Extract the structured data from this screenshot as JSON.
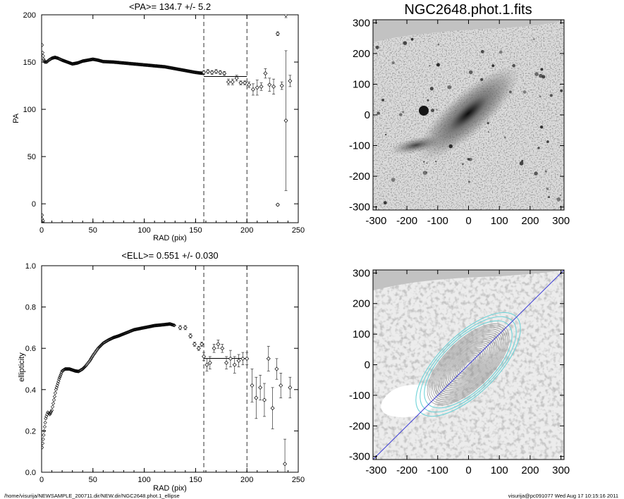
{
  "footer": {
    "path": "/home/visurija/NEWSAMPLE_200711.dir/NEW.dir/NGC2648.phot.1_ellipse",
    "stamp": "visurija@pc091077  Wed Aug 17 10:15:16 2011"
  },
  "chart_data": [
    {
      "type": "scatter",
      "title": "<PA>= 134.7 +/-   5.2",
      "xlabel": "RAD (pix)",
      "ylabel": "PA",
      "xlim": [
        0,
        250
      ],
      "ylim": [
        -20,
        200
      ],
      "xticks": [
        "0",
        "50",
        "100",
        "150",
        "200",
        "250"
      ],
      "yticks": [
        "0",
        "50",
        "100",
        "150",
        "200"
      ],
      "vlines": [
        158,
        200
      ],
      "mean_line": {
        "x": [
          158,
          200
        ],
        "y": 134.7
      },
      "series": [
        {
          "smooth": [
            [
              0.5,
              168
            ],
            [
              1,
              160
            ],
            [
              2,
              153
            ],
            [
              3,
              150
            ],
            [
              5,
              150
            ],
            [
              7,
              152
            ],
            [
              10,
              154
            ],
            [
              13,
              155
            ],
            [
              16,
              154
            ],
            [
              20,
              152
            ],
            [
              25,
              150
            ],
            [
              30,
              148
            ],
            [
              35,
              149
            ],
            [
              40,
              151
            ],
            [
              45,
              152
            ],
            [
              50,
              153
            ],
            [
              55,
              152
            ],
            [
              60,
              150.5
            ],
            [
              70,
              150
            ],
            [
              80,
              149
            ],
            [
              90,
              148
            ],
            [
              100,
              147
            ],
            [
              110,
              146
            ],
            [
              120,
              145
            ],
            [
              130,
              143
            ],
            [
              140,
              141
            ],
            [
              150,
              139
            ],
            [
              158,
              138
            ]
          ],
          "points": [
            {
              "x": 158,
              "y": 139,
              "e": 2
            },
            {
              "x": 162,
              "y": 140,
              "e": 2
            },
            {
              "x": 166,
              "y": 139,
              "e": 2
            },
            {
              "x": 170,
              "y": 140,
              "e": 2
            },
            {
              "x": 174,
              "y": 139,
              "e": 2
            },
            {
              "x": 178,
              "y": 138,
              "e": 2
            },
            {
              "x": 182,
              "y": 129,
              "e": 3
            },
            {
              "x": 186,
              "y": 129,
              "e": 3
            },
            {
              "x": 190,
              "y": 133,
              "e": 3
            },
            {
              "x": 194,
              "y": 128,
              "e": 2
            },
            {
              "x": 198,
              "y": 128,
              "e": 2
            },
            {
              "x": 202,
              "y": 126,
              "e": 3
            },
            {
              "x": 206,
              "y": 121,
              "e": 6
            },
            {
              "x": 210,
              "y": 123,
              "e": 8
            },
            {
              "x": 214,
              "y": 124,
              "e": 4
            },
            {
              "x": 218,
              "y": 138,
              "e": 5
            },
            {
              "x": 222,
              "y": 126,
              "e": 7
            },
            {
              "x": 226,
              "y": 124,
              "e": 8
            },
            {
              "x": 230,
              "y": 180,
              "e": 2
            },
            {
              "x": 230,
              "y": -1,
              "e": 1
            },
            {
              "x": 234,
              "y": 125,
              "e": 4
            },
            {
              "x": 238,
              "y": 88,
              "e": 74
            },
            {
              "x": 242,
              "y": 130,
              "e": 6
            },
            {
              "x": 238,
              "y": 200,
              "e": 3
            }
          ],
          "outliers": [
            [
              0.5,
              -12
            ],
            [
              0.5,
              -16
            ],
            [
              1.5,
              -18
            ],
            [
              1.5,
              -20
            ]
          ]
        }
      ]
    },
    {
      "type": "image",
      "title": "NGC2648.phot.1.fits",
      "xlim": [
        -310,
        310
      ],
      "ylim": [
        -310,
        310
      ],
      "xticks": [
        "-300",
        "-200",
        "-100",
        "0",
        "100",
        "200",
        "300"
      ],
      "yticks": [
        "-300",
        "-200",
        "-100",
        "0",
        "100",
        "200",
        "300"
      ]
    },
    {
      "type": "scatter",
      "title": "<ELL>= 0.551 +/-  0.030",
      "xlabel": "RAD (pix)",
      "ylabel": "ellipticity",
      "xlim": [
        0,
        250
      ],
      "ylim": [
        0,
        1
      ],
      "xticks": [
        "0",
        "50",
        "100",
        "150",
        "200",
        "250"
      ],
      "yticks": [
        "0.0",
        "0.2",
        "0.4",
        "0.6",
        "0.8",
        "1.0"
      ],
      "vlines": [
        158,
        200
      ],
      "mean_line": {
        "x": [
          158,
          200
        ],
        "y": 0.551
      },
      "series": [
        {
          "smooth": [
            [
              0.5,
              0.12
            ],
            [
              1,
              0.14
            ],
            [
              2,
              0.18
            ],
            [
              3,
              0.22
            ],
            [
              4,
              0.26
            ],
            [
              6,
              0.29
            ],
            [
              8,
              0.28
            ],
            [
              10,
              0.3
            ],
            [
              12,
              0.35
            ],
            [
              14,
              0.4
            ],
            [
              17,
              0.45
            ],
            [
              20,
              0.49
            ],
            [
              23,
              0.5
            ],
            [
              27,
              0.5
            ],
            [
              30,
              0.495
            ],
            [
              33,
              0.49
            ],
            [
              36,
              0.488
            ],
            [
              40,
              0.5
            ],
            [
              43,
              0.515
            ],
            [
              47,
              0.54
            ],
            [
              50,
              0.565
            ],
            [
              55,
              0.6
            ],
            [
              60,
              0.625
            ],
            [
              65,
              0.64
            ],
            [
              70,
              0.652
            ],
            [
              75,
              0.66
            ],
            [
              80,
              0.67
            ],
            [
              90,
              0.69
            ],
            [
              100,
              0.7
            ],
            [
              110,
              0.71
            ],
            [
              120,
              0.715
            ],
            [
              125,
              0.718
            ],
            [
              130,
              0.71
            ]
          ],
          "points": [
            {
              "x": 135,
              "y": 0.7,
              "e": 0.01
            },
            {
              "x": 140,
              "y": 0.7,
              "e": 0.01
            },
            {
              "x": 145,
              "y": 0.66,
              "e": 0.01
            },
            {
              "x": 149,
              "y": 0.62,
              "e": 0.01
            },
            {
              "x": 153,
              "y": 0.6,
              "e": 0.01
            },
            {
              "x": 156,
              "y": 0.62,
              "e": 0.01
            },
            {
              "x": 158,
              "y": 0.56,
              "e": 0.02
            },
            {
              "x": 161,
              "y": 0.52,
              "e": 0.03
            },
            {
              "x": 164,
              "y": 0.53,
              "e": 0.03
            },
            {
              "x": 168,
              "y": 0.6,
              "e": 0.02
            },
            {
              "x": 172,
              "y": 0.62,
              "e": 0.02
            },
            {
              "x": 176,
              "y": 0.6,
              "e": 0.02
            },
            {
              "x": 180,
              "y": 0.53,
              "e": 0.03
            },
            {
              "x": 184,
              "y": 0.55,
              "e": 0.04
            },
            {
              "x": 188,
              "y": 0.52,
              "e": 0.04
            },
            {
              "x": 192,
              "y": 0.54,
              "e": 0.03
            },
            {
              "x": 196,
              "y": 0.55,
              "e": 0.03
            },
            {
              "x": 200,
              "y": 0.55,
              "e": 0.03
            },
            {
              "x": 205,
              "y": 0.42,
              "e": 0.08
            },
            {
              "x": 209,
              "y": 0.36,
              "e": 0.1
            },
            {
              "x": 213,
              "y": 0.41,
              "e": 0.06
            },
            {
              "x": 217,
              "y": 0.35,
              "e": 0.08
            },
            {
              "x": 221,
              "y": 0.55,
              "e": 0.06
            },
            {
              "x": 225,
              "y": 0.31,
              "e": 0.1
            },
            {
              "x": 229,
              "y": 0.5,
              "e": 0.05
            },
            {
              "x": 233,
              "y": 0.42,
              "e": 0.06
            },
            {
              "x": 237,
              "y": 0.04,
              "e": 0.12
            },
            {
              "x": 242,
              "y": 0.41,
              "e": 0.05
            }
          ]
        }
      ]
    },
    {
      "type": "image",
      "title": "",
      "xlim": [
        -310,
        310
      ],
      "ylim": [
        -310,
        310
      ],
      "xticks": [
        "-300",
        "-200",
        "-100",
        "0",
        "100",
        "200",
        "300"
      ],
      "yticks": [
        "-300",
        "-200",
        "-100",
        "0",
        "100",
        "200",
        "300"
      ],
      "major_axis_pa": 134.7
    }
  ]
}
